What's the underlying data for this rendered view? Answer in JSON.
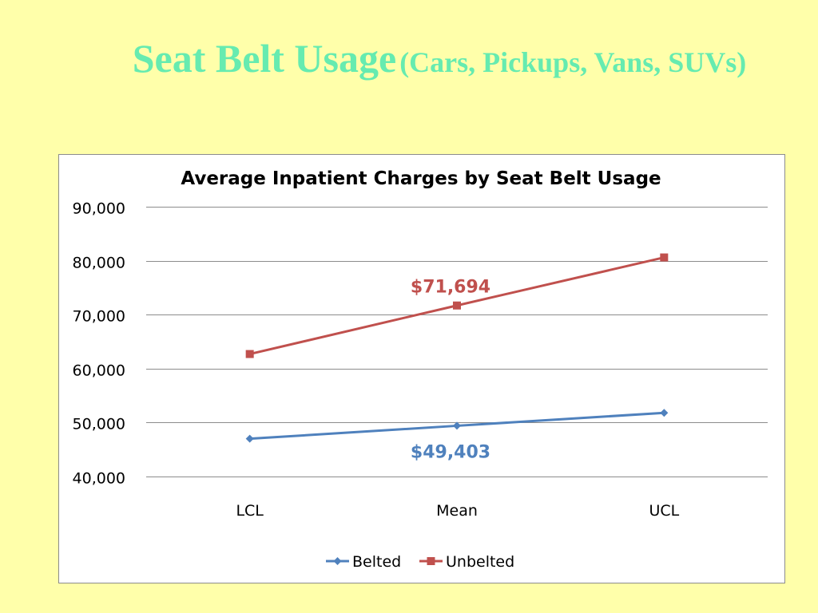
{
  "slide": {
    "title_main": "Seat Belt Usage",
    "title_sub": "(Cars, Pickups, Vans, SUVs)"
  },
  "chart_data": {
    "type": "line",
    "title": "Average Inpatient Charges by Seat Belt Usage",
    "categories": [
      "LCL",
      "Mean",
      "UCL"
    ],
    "series": [
      {
        "name": "Belted",
        "values": [
          47000,
          49403,
          51800
        ],
        "color": "#4F81BD",
        "marker": "diamond",
        "label": "$49,403"
      },
      {
        "name": "Unbelted",
        "values": [
          62700,
          71694,
          80600
        ],
        "color": "#C0504D",
        "marker": "square",
        "label": "$71,694"
      }
    ],
    "ylim": [
      40000,
      90000
    ],
    "yticks": [
      40000,
      50000,
      60000,
      70000,
      80000,
      90000
    ],
    "ytick_labels": [
      "40,000",
      "50,000",
      "60,000",
      "70,000",
      "80,000",
      "90,000"
    ],
    "grid": true,
    "legend": "bottom"
  }
}
